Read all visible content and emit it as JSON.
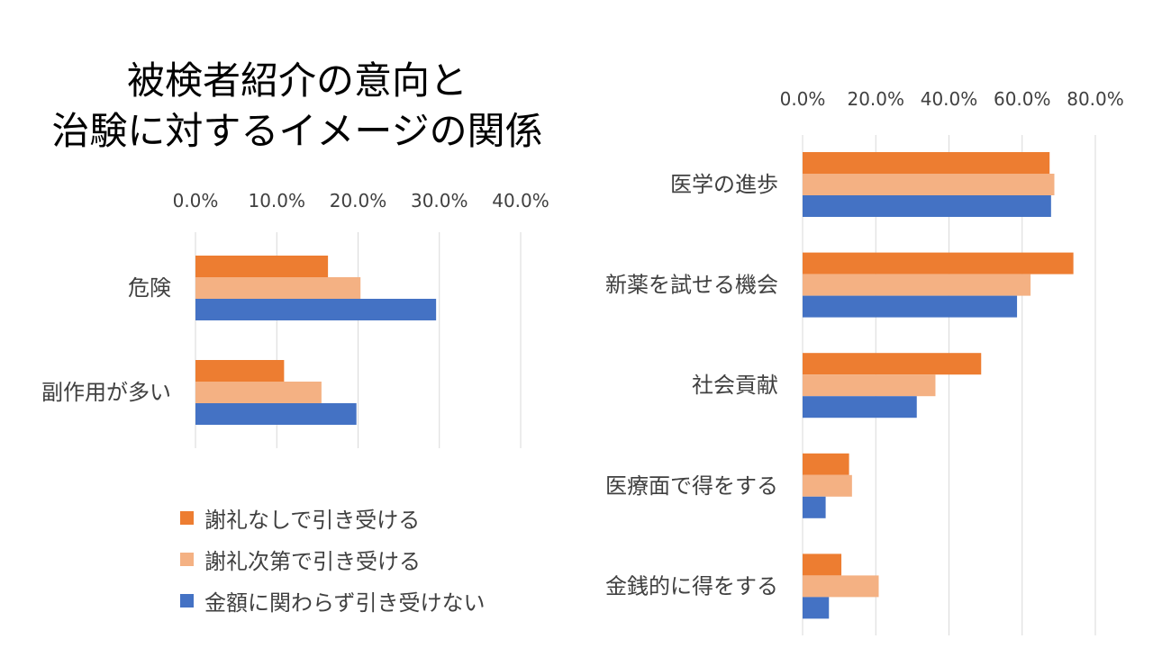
{
  "title": {
    "line1": "被検者紹介の意向と",
    "line2": "治験に対するイメージの関係"
  },
  "series_colors": {
    "thanks_none": "#ED7D31",
    "thanks_dependent": "#F4B183",
    "refuse_for_money": "#4472C4"
  },
  "legend": [
    {
      "label": "謝礼なしで引き受ける",
      "color": "#ED7D31"
    },
    {
      "label": "謝礼次第で引き受ける",
      "color": "#F4B183"
    },
    {
      "label": "金額に関わらず引き受けない",
      "color": "#4472C4"
    }
  ],
  "chart_data": [
    {
      "type": "bar",
      "orientation": "horizontal",
      "title": "",
      "categories": [
        "危険",
        "副作用が多い"
      ],
      "series": [
        {
          "name": "謝礼なしで引き受ける",
          "values": [
            16.3,
            10.9
          ]
        },
        {
          "name": "謝礼次第で引き受ける",
          "values": [
            20.3,
            15.5
          ]
        },
        {
          "name": "金額に関わらず引き受けない",
          "values": [
            29.6,
            19.8
          ]
        }
      ],
      "xlim": [
        0,
        40
      ],
      "ticks": [
        "0.0%",
        "10.0%",
        "20.0%",
        "30.0%",
        "40.0%"
      ],
      "xlabel": "",
      "ylabel": "",
      "grid": true,
      "axis_position": "top"
    },
    {
      "type": "bar",
      "orientation": "horizontal",
      "title": "",
      "categories": [
        "医学の進歩",
        "新薬を試せる機会",
        "社会貢献",
        "医療面で得をする",
        "金銭的に得をする"
      ],
      "series": [
        {
          "name": "謝礼なしで引き受ける",
          "values": [
            67.5,
            74.0,
            48.8,
            12.7,
            10.6
          ]
        },
        {
          "name": "謝礼次第で引き受ける",
          "values": [
            68.8,
            62.3,
            36.3,
            13.5,
            20.8
          ]
        },
        {
          "name": "金額に関わらず引き受けない",
          "values": [
            67.9,
            58.6,
            31.2,
            6.3,
            7.2
          ]
        }
      ],
      "xlim": [
        0,
        80
      ],
      "ticks": [
        "0.0%",
        "20.0%",
        "40.0%",
        "60.0%",
        "80.0%"
      ],
      "xlabel": "",
      "ylabel": "",
      "grid": true,
      "axis_position": "top"
    }
  ]
}
